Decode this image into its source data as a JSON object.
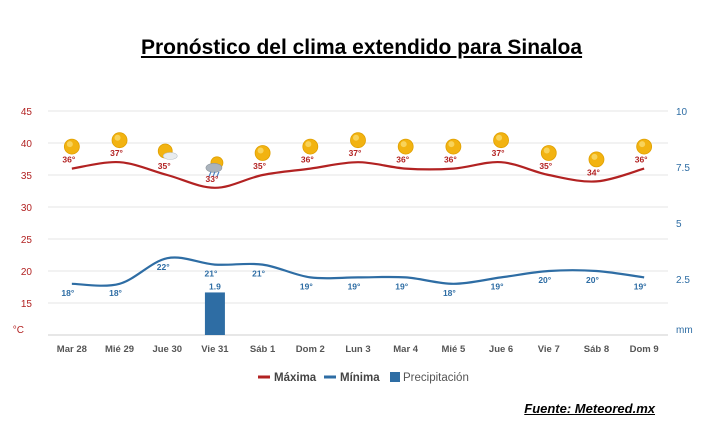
{
  "title": "Pronóstico del clima extendido para Sinaloa",
  "source": "Fuente: Meteored.mx",
  "colors": {
    "max": "#b22222",
    "min": "#2e6da4",
    "precip": "#2e6da4",
    "grid": "#e6e6e6",
    "sun": "#f2b311"
  },
  "chart_data": {
    "type": "line",
    "categories": [
      "Mar 28",
      "Mié 29",
      "Jue 30",
      "Vie 31",
      "Sáb 1",
      "Dom 2",
      "Lun 3",
      "Mar 4",
      "Mié 5",
      "Jue 6",
      "Vie 7",
      "Sáb 8",
      "Dom 9"
    ],
    "icons": [
      "sun-icon",
      "sun-icon",
      "partly-cloudy-icon",
      "storm-icon",
      "sun-icon",
      "sun-icon",
      "sun-icon",
      "sun-icon",
      "sun-icon",
      "sun-icon",
      "sun-icon",
      "sun-icon",
      "sun-icon"
    ],
    "series": [
      {
        "name": "Máxima",
        "axis": "left",
        "values": [
          36,
          37,
          35,
          33,
          35,
          36,
          37,
          36,
          36,
          37,
          35,
          34,
          36
        ],
        "labels": [
          "36°",
          "37°",
          "35°",
          "33°",
          "35°",
          "36°",
          "37°",
          "36°",
          "36°",
          "37°",
          "35°",
          "34°",
          "36°"
        ]
      },
      {
        "name": "Mínima",
        "axis": "left",
        "values": [
          18,
          18,
          22,
          21,
          21,
          19,
          19,
          19,
          18,
          19,
          20,
          20,
          19
        ],
        "labels": [
          "18°",
          "18°",
          "22°",
          "21°",
          "21°",
          "19°",
          "19°",
          "19°",
          "18°",
          "19°",
          "20°",
          "20°",
          "19°"
        ]
      },
      {
        "name": "Precipitación",
        "type": "bar",
        "axis": "right",
        "values": [
          0,
          0,
          0,
          1.9,
          0,
          0,
          0,
          0,
          0,
          0,
          0,
          0,
          0
        ],
        "labels": [
          "",
          "",
          "",
          "1.9",
          "",
          "",
          "",
          "",
          "",
          "",
          "",
          "",
          ""
        ]
      }
    ],
    "y_left": {
      "min": 10,
      "max": 45,
      "ticks": [
        "15",
        "20",
        "25",
        "30",
        "35",
        "40",
        "45"
      ],
      "unit": "°C"
    },
    "y_right": {
      "min": 0,
      "max": 10,
      "ticks": [
        "2.5",
        "5",
        "7.5",
        "10"
      ],
      "unit": "mm"
    },
    "grid": true,
    "legend_position": "bottom"
  }
}
